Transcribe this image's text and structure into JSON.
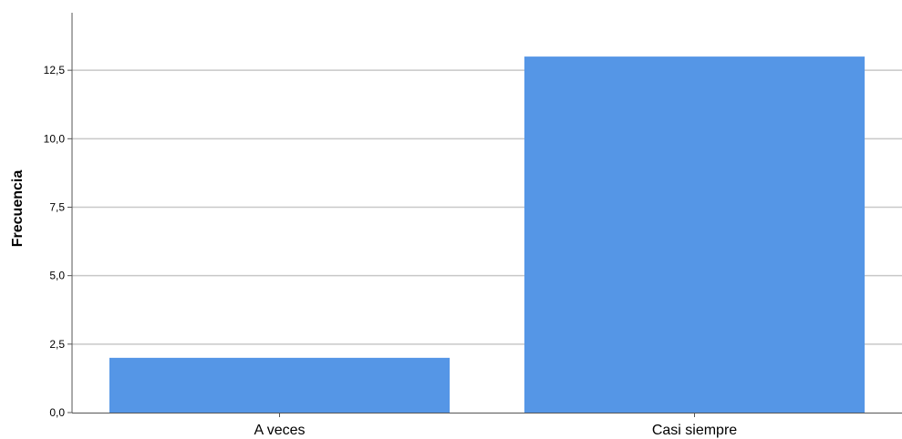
{
  "chart_data": {
    "type": "bar",
    "categories": [
      "A veces",
      "Casi siempre"
    ],
    "values": [
      2,
      13
    ],
    "title": "",
    "xlabel": "",
    "ylabel": "Frecuencia",
    "ylim": [
      0,
      14.6
    ],
    "yticks": [
      0,
      2.5,
      5,
      7.5,
      10,
      12.5
    ],
    "ytick_labels": [
      "0,0",
      "2,5",
      "5,0",
      "7,5",
      "10,0",
      "12,5"
    ],
    "grid": true,
    "bar_color": "#5596e6"
  }
}
